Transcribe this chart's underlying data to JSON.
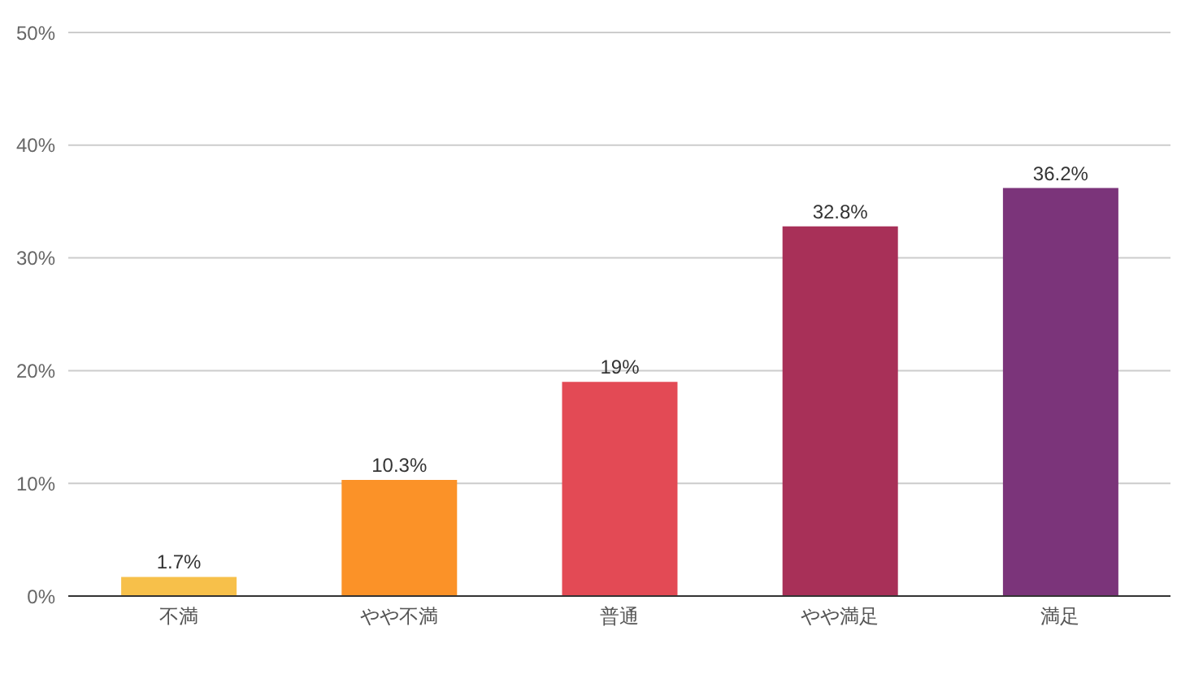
{
  "chart_data": {
    "type": "bar",
    "categories": [
      "不満",
      "やや不満",
      "普通",
      "やや満足",
      "満足"
    ],
    "values": [
      1.7,
      10.3,
      19,
      32.8,
      36.2
    ],
    "colors": [
      "#f7c04a",
      "#fb9228",
      "#e34a55",
      "#a83058",
      "#7b347a"
    ],
    "value_labels": [
      "1.7%",
      "10.3%",
      "19%",
      "32.8%",
      "36.2%"
    ],
    "ylim": [
      0,
      50
    ],
    "yticks": [
      {
        "value": 0,
        "label": "0%"
      },
      {
        "value": 10,
        "label": "10%"
      },
      {
        "value": 20,
        "label": "20%"
      },
      {
        "value": 30,
        "label": "30%"
      },
      {
        "value": 40,
        "label": "40%"
      },
      {
        "value": 50,
        "label": "50%"
      }
    ],
    "grid": "y"
  }
}
